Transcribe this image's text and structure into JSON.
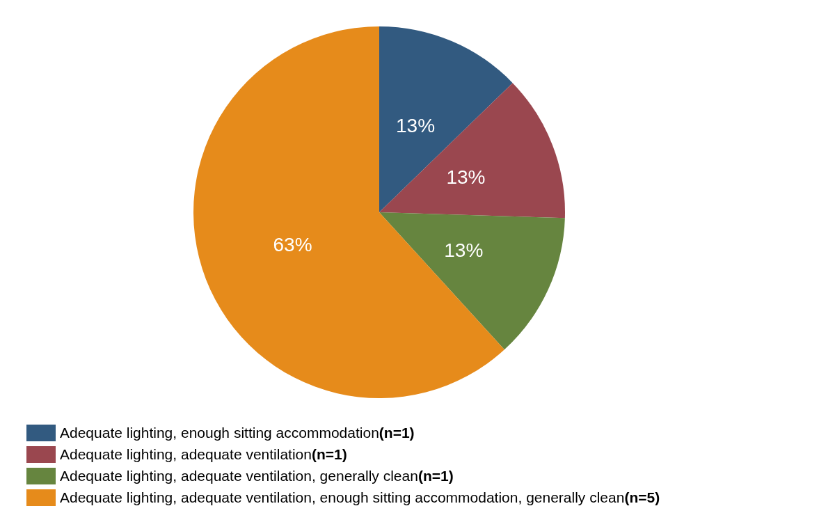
{
  "chart_data": {
    "type": "pie",
    "categories": [
      "Adequate lighting, enough sitting accommodation(n=1)",
      "Adequate lighting, adequate ventilation(n=1)",
      "Adequate lighting, adequate ventilation, generally clean(n=1)",
      "Adequate lighting, adequate ventilation, enough sitting accommodation, generally clean(n=5)"
    ],
    "values": [
      13,
      13,
      13,
      63
    ],
    "colors": [
      "#325a80",
      "#9a474f",
      "#66853f",
      "#e68b1b"
    ],
    "value_labels": [
      "13%",
      "13%",
      "13%",
      "63%"
    ],
    "legend": "bottom"
  }
}
